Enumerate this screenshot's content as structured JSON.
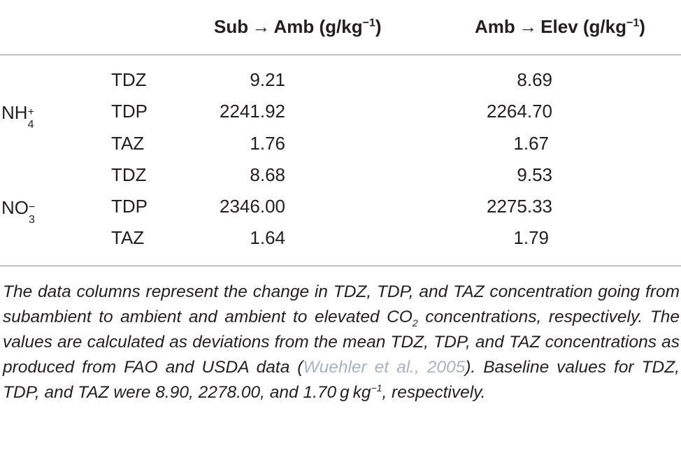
{
  "table": {
    "headers": {
      "col1_main": "Sub → Amb (g/kg",
      "col1_sup": "−1",
      "col1_close": ")",
      "col2_main": "Amb → Elev (g/kg",
      "col2_sup": "−1",
      "col2_close": ")"
    },
    "groups": [
      {
        "species_base": "NH",
        "species_sub": "4",
        "species_sup": "+",
        "rows": [
          {
            "label": "TDZ",
            "sub_amb": "9.21",
            "amb_elev": "8.69"
          },
          {
            "label": "TDP",
            "sub_amb": "2241.92",
            "amb_elev": "2264.70"
          },
          {
            "label": "TAZ",
            "sub_amb": "1.76",
            "amb_elev": "1.67"
          }
        ]
      },
      {
        "species_base": "NO",
        "species_sub": "3",
        "species_sup": "−",
        "rows": [
          {
            "label": "TDZ",
            "sub_amb": "8.68",
            "amb_elev": "9.53"
          },
          {
            "label": "TDP",
            "sub_amb": "2346.00",
            "amb_elev": "2275.33"
          },
          {
            "label": "TAZ",
            "sub_amb": "1.64",
            "amb_elev": "1.79"
          }
        ]
      }
    ]
  },
  "footnote": {
    "part1": "The data columns represent the change in TDZ, TDP, and TAZ concentration going from subambient to ambient and ambient to elevated CO",
    "co2_sub": "2",
    "part2": " concentrations, respectively. The values are calculated as deviations from the mean TDZ, TDP, and TAZ concentrations as produced from FAO and USDA data (",
    "citation": "Wuehler et al., 2005",
    "part3": "). Baseline values for TDZ, TDP, and TAZ were 8.90, 2278.00, and 1.70 g kg",
    "unit_sup": "−1",
    "part4": ", respectively."
  }
}
